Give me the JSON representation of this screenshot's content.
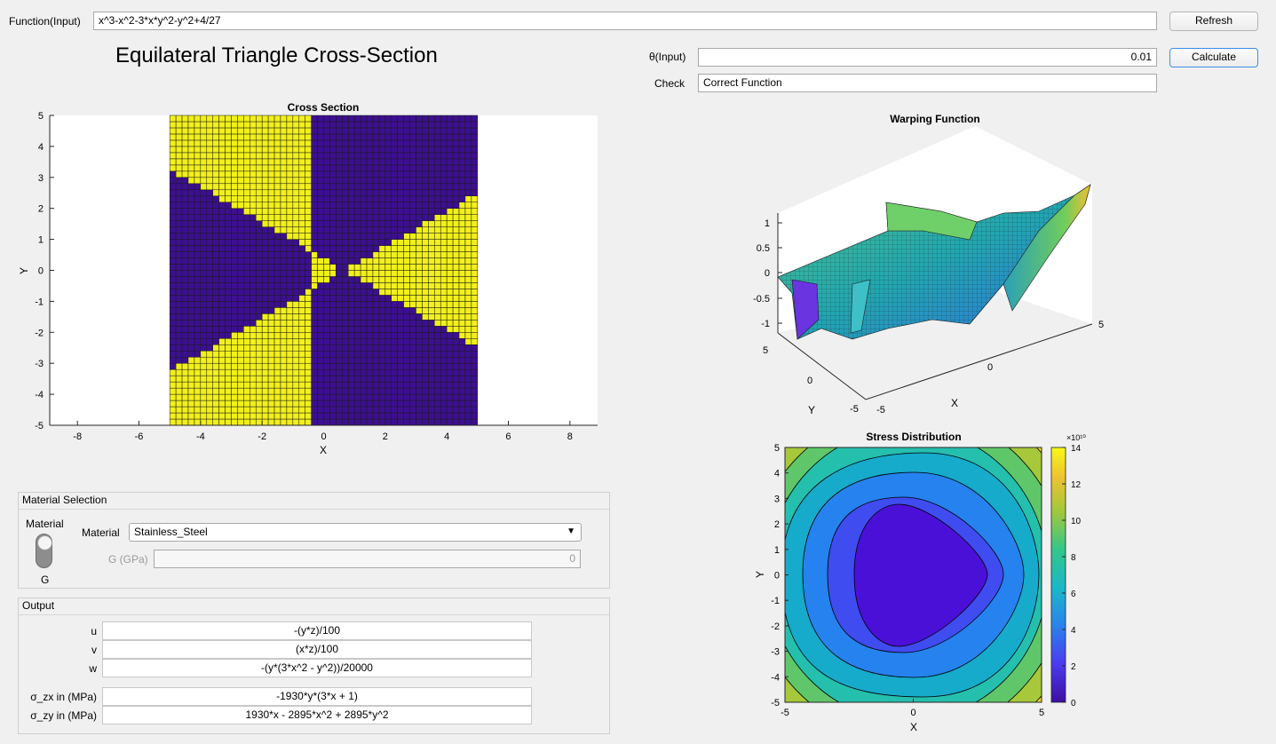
{
  "function_row": {
    "label": "Function(Input)",
    "value": "x^3-x^2-3*x*y^2-y^2+4/27",
    "refresh_label": "Refresh"
  },
  "page_title": "Equilateral Triangle Cross-Section",
  "theta": {
    "label": "θ(Input)",
    "value": "0.01"
  },
  "calculate_label": "Calculate",
  "check": {
    "label": "Check",
    "value": "Correct Function"
  },
  "cross_section": {
    "title": "Cross Section",
    "xlabel": "X",
    "ylabel": "Y",
    "xticks": [
      "-8",
      "-6",
      "-4",
      "-2",
      "0",
      "2",
      "4",
      "6",
      "8"
    ],
    "yticks": [
      "5",
      "4",
      "3",
      "2",
      "1",
      "0",
      "-1",
      "-2",
      "-3",
      "-4",
      "-5"
    ],
    "colors": {
      "inside": "#f2f01a",
      "outside": "#3c0f90"
    }
  },
  "warping": {
    "title": "Warping Function",
    "xlabel": "X",
    "ylabel": "Y",
    "zticks": [
      "1",
      "0.5",
      "0",
      "-0.5",
      "-1"
    ],
    "xticks": [
      "-5",
      "0",
      "5"
    ],
    "yticks": [
      "5",
      "0",
      "-5"
    ]
  },
  "stress": {
    "title": "Stress Distribution",
    "xlabel": "X",
    "ylabel": "Y",
    "xticks": [
      "-5",
      "0",
      "5"
    ],
    "yticks": [
      "5",
      "4",
      "3",
      "2",
      "1",
      "0",
      "-1",
      "-2",
      "-3",
      "-4",
      "-5"
    ],
    "colorbar_ticks": [
      "14",
      "12",
      "10",
      "8",
      "6",
      "4",
      "2",
      "0"
    ],
    "colorbar_exponent": "×10¹⁰"
  },
  "material_panel": {
    "title": "Material Selection",
    "switch_label": "Material",
    "switch_off_label": "G",
    "material_label": "Material",
    "material_value": "Stainless_Steel",
    "g_label": "G (GPa)",
    "g_value": "0"
  },
  "output_panel": {
    "title": "Output",
    "rows": [
      {
        "label": "u",
        "value": "-(y*z)/100"
      },
      {
        "label": "v",
        "value": "(x*z)/100"
      },
      {
        "label": "w",
        "value": "-(y*(3*x^2 - y^2))/20000"
      },
      {
        "label": "σ_zx in (MPa)",
        "value": "-1930*y*(3*x + 1)"
      },
      {
        "label": "σ_zy in (MPa)",
        "value": "1930*x - 2895*x^2 + 2895*y^2"
      }
    ]
  }
}
